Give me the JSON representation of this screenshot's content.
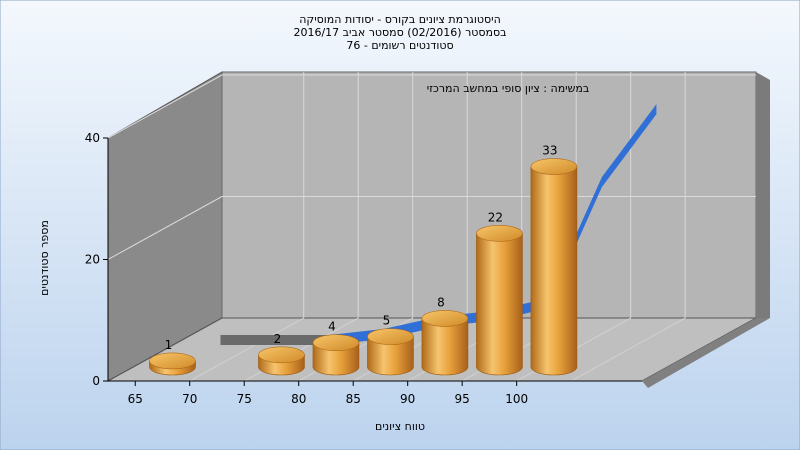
{
  "chart_data": {
    "type": "bar",
    "title_lines": [
      "היסטוגרמת ציונים בקורס - יסודות המוסיקה",
      "בסמסטר  (02/2016)  סמסטר אביב 2016/17",
      "סטודנטים רשומים - 76"
    ],
    "subtitle": "במשימה : ציון סופי במחשב המרכזי",
    "xlabel": "טווח ציונים",
    "ylabel": "מספר סטודנטים",
    "x_ticks": [
      "65",
      "70",
      "75",
      "80",
      "85",
      "90",
      "95",
      "100"
    ],
    "y_ticks": [
      "0",
      "20",
      "40"
    ],
    "ylim": [
      0,
      40
    ],
    "bars": [
      {
        "x": 67.5,
        "value": 1,
        "label": "1"
      },
      {
        "x": 72.5,
        "value": 0,
        "label": ""
      },
      {
        "x": 77.5,
        "value": 2,
        "label": "2"
      },
      {
        "x": 82.5,
        "value": 4,
        "label": "4"
      },
      {
        "x": 87.5,
        "value": 5,
        "label": "5"
      },
      {
        "x": 92.5,
        "value": 8,
        "label": "8"
      },
      {
        "x": 97.5,
        "value": 22,
        "label": "22"
      },
      {
        "x": 102.5,
        "value": 33,
        "label": "33"
      }
    ],
    "cumulative_line": {
      "x": [
        67.5,
        72.5,
        77.5,
        82.5,
        87.5,
        92.5,
        97.5,
        102.5,
        107.5
      ],
      "values": [
        0,
        0,
        0,
        1,
        3,
        4,
        6,
        26,
        38
      ]
    },
    "grid": true,
    "colors": {
      "bar": "#e8a23c",
      "line": "#2f6fd6",
      "back_wall": "#b5b5b5",
      "left_wall": "#8a8a8a",
      "floor": "#bfbfbf",
      "background_top": "#f4f8fd",
      "background_bottom": "#bcd3ee"
    }
  }
}
